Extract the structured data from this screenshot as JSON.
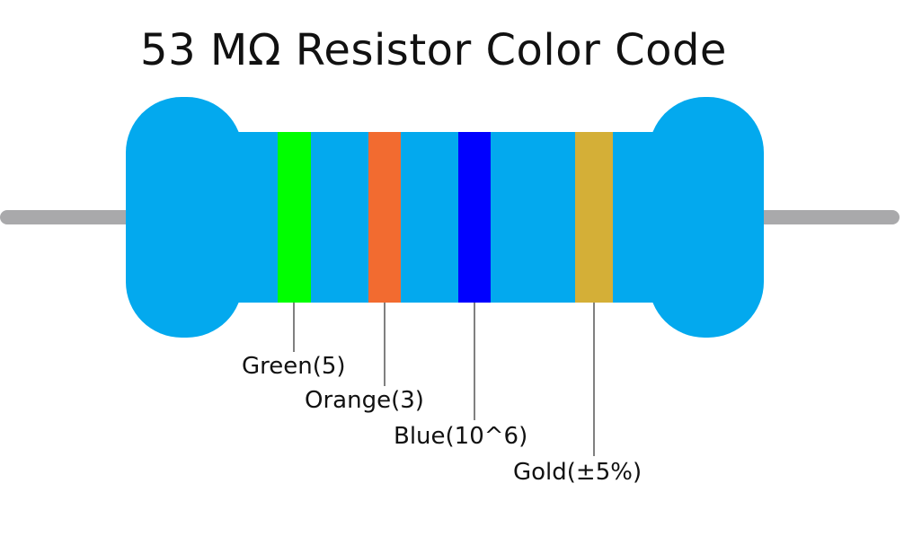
{
  "title": "53 MΩ Resistor Color Code",
  "colors": {
    "body": "#03a9ee",
    "lead": "#a9a9ab",
    "background": "#ffffff"
  },
  "bands": [
    {
      "label": "Green(5)",
      "color": "#00ff00"
    },
    {
      "label": "Orange(3)",
      "color": "#f26b30"
    },
    {
      "label": "Blue(10^6)",
      "color": "#0000ff"
    },
    {
      "label": "Gold(±5%)",
      "color": "#d4af37"
    }
  ]
}
